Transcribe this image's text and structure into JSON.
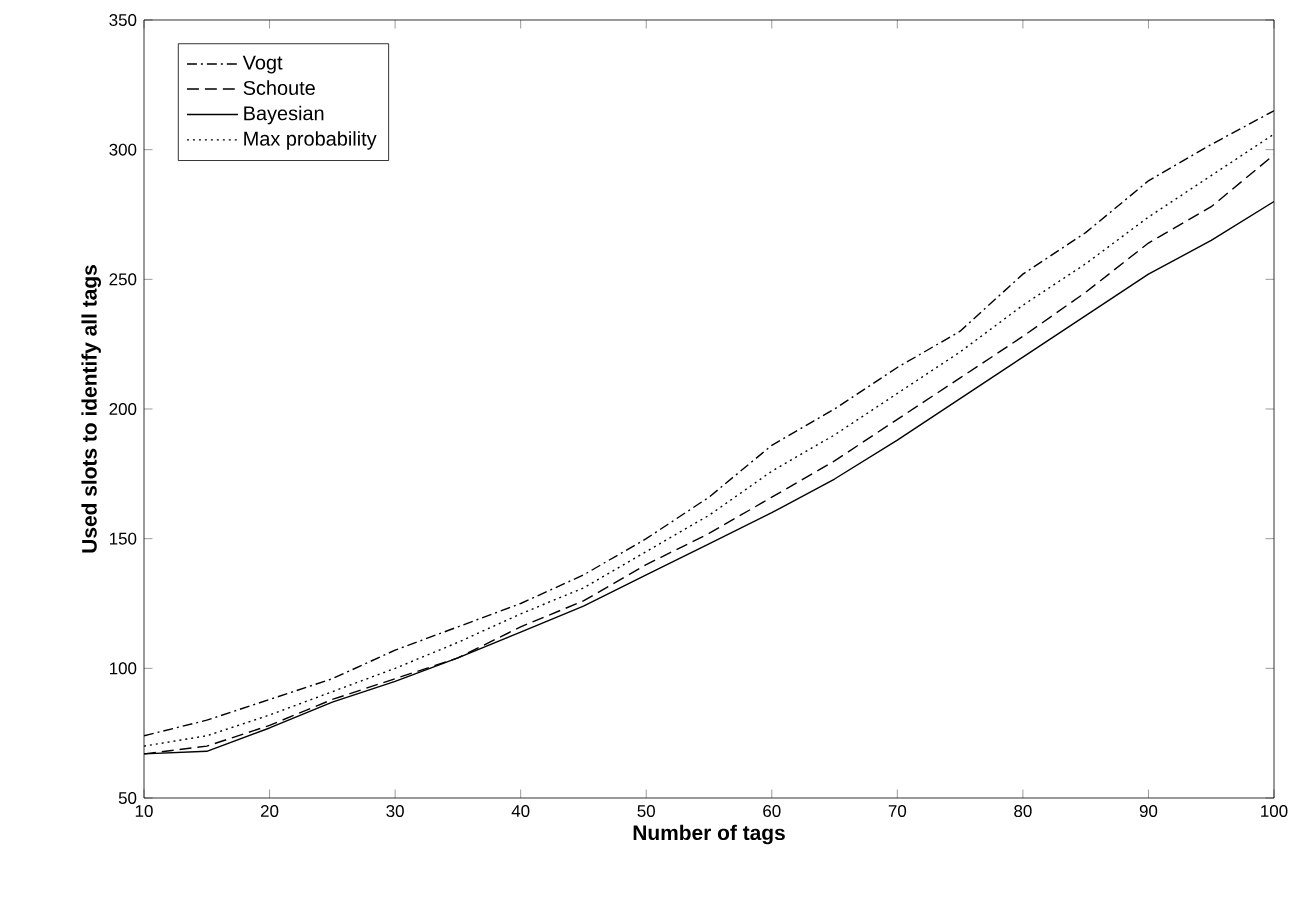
{
  "chart_data": {
    "type": "line",
    "xlabel": "Number of tags",
    "ylabel": "Used slots to identify all tags",
    "x": [
      10,
      15,
      20,
      25,
      30,
      35,
      40,
      45,
      50,
      55,
      60,
      65,
      70,
      75,
      80,
      85,
      90,
      95,
      100
    ],
    "xlim": [
      10,
      100
    ],
    "xticks": [
      10,
      20,
      30,
      40,
      50,
      60,
      70,
      80,
      90,
      100
    ],
    "ylim": [
      50,
      350
    ],
    "yticks": [
      50,
      100,
      150,
      200,
      250,
      300,
      350
    ],
    "grid": false,
    "legend": "top left",
    "marker": "none",
    "series": [
      {
        "name": "Vogt",
        "color": "#000000",
        "line_style": "dashdot",
        "values": [
          74,
          80,
          88,
          96,
          107,
          116,
          125,
          136,
          150,
          166,
          186,
          200,
          216,
          230,
          252,
          268,
          288,
          302,
          315
        ]
      },
      {
        "name": "Schoute",
        "color": "#000000",
        "line_style": "dashed",
        "values": [
          67,
          70,
          78,
          88,
          96,
          104,
          116,
          126,
          140,
          152,
          166,
          180,
          196,
          212,
          228,
          245,
          264,
          278,
          298
        ]
      },
      {
        "name": "Bayesian",
        "color": "#000000",
        "line_style": "solid",
        "values": [
          67,
          68,
          77,
          87,
          95,
          104,
          114,
          124,
          136,
          148,
          160,
          173,
          188,
          204,
          220,
          236,
          252,
          265,
          280
        ]
      },
      {
        "name": "Max probability",
        "color": "#000000",
        "line_style": "dotted",
        "values": [
          70,
          74,
          82,
          91,
          100,
          110,
          121,
          131,
          145,
          159,
          176,
          190,
          206,
          222,
          240,
          256,
          274,
          290,
          306
        ]
      }
    ]
  }
}
